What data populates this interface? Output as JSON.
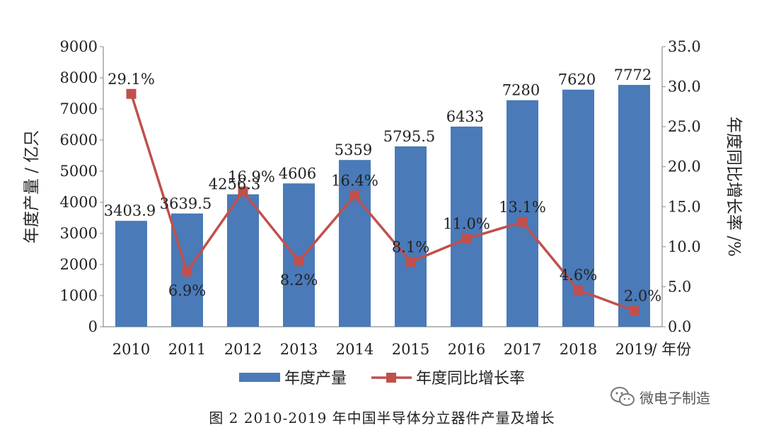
{
  "chart_data": {
    "type": "bar",
    "categories": [
      "2010",
      "2011",
      "2012",
      "2013",
      "2014",
      "2015",
      "2016",
      "2017",
      "2018",
      "2019"
    ],
    "series": [
      {
        "name": "年度产量",
        "type": "bar",
        "axis": "left",
        "color": "#4a7ab8",
        "values": [
          3403.9,
          3639.5,
          4256.3,
          4606,
          5359,
          5795.5,
          6433,
          7280,
          7620,
          7772
        ],
        "labels": [
          "3403.9",
          "3639.5",
          "4256.3",
          "4606",
          "5359",
          "5795.5",
          "6433",
          "7280",
          "7620",
          "7772"
        ]
      },
      {
        "name": "年度同比增长率",
        "type": "line",
        "axis": "right",
        "color": "#c0504d",
        "values": [
          29.1,
          6.9,
          16.9,
          8.2,
          16.4,
          8.1,
          11.0,
          13.1,
          4.6,
          2.0
        ],
        "labels": [
          "29.1%",
          "6.9%",
          "16.9%",
          "8.2%",
          "16.4%",
          "8.1%",
          "11.0%",
          "13.1%",
          "4.6%",
          "2.0%"
        ]
      }
    ],
    "ylabel": "年度产量 / 亿只",
    "y2label": "年度同比增长率 /%",
    "xlabel_suffix": "/ 年份",
    "ylim": [
      0,
      9000
    ],
    "y2lim": [
      0,
      35
    ],
    "yticks": [
      "0",
      "1000",
      "2000",
      "3000",
      "4000",
      "5000",
      "6000",
      "7000",
      "8000",
      "9000"
    ],
    "y2ticks": [
      "0.0",
      "5.0",
      "10.0",
      "15.0",
      "20.0",
      "25.0",
      "30.0",
      "35.0"
    ],
    "grid": false,
    "legend_position": "bottom"
  },
  "caption": "图 2  2010-2019 年中国半导体分立器件产量及增长",
  "watermark": {
    "text": "微电子制造",
    "icon": "wechat-icon"
  }
}
